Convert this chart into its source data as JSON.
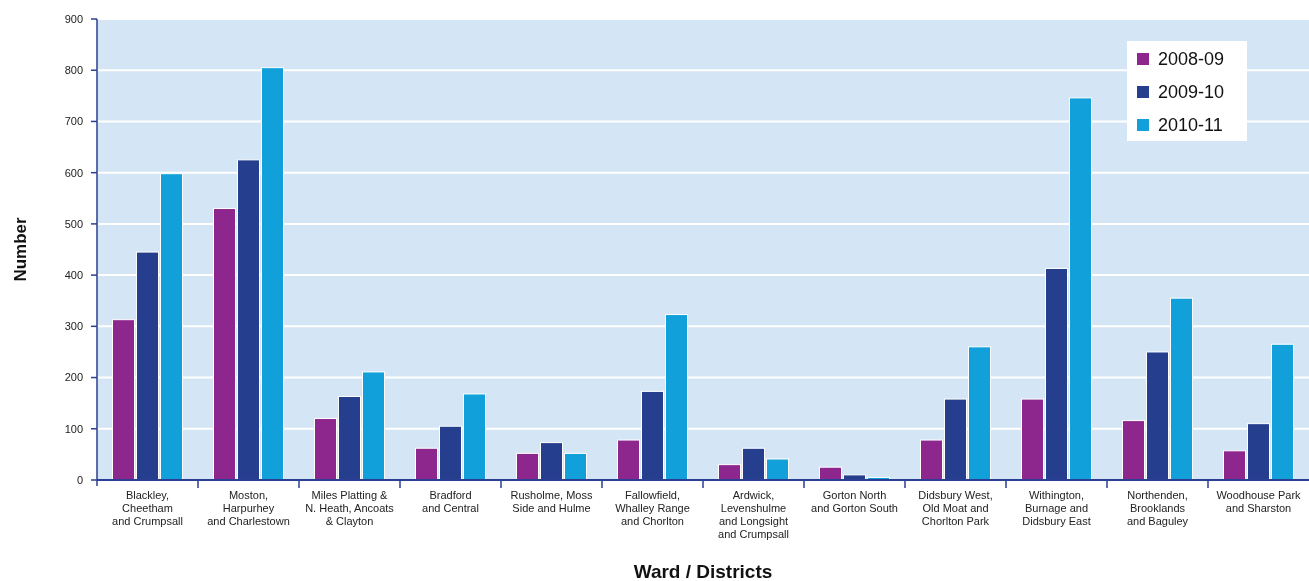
{
  "chart_data": {
    "type": "bar",
    "xlabel": "Ward / Districts",
    "ylabel": "Number",
    "categories": [
      "Blackley,\nCheetham\nand Crumpsall",
      "Moston,\nHarpurhey\nand Charlestown",
      "Miles Platting &\nN. Heath, Ancoats\n& Clayton",
      "Bradford\nand Central",
      "Rusholme, Moss\nSide and Hulme",
      "Fallowfield,\nWhalley Range\nand Chorlton",
      "Ardwick,\nLevenshulme\nand Longsight\nand Crumpsall",
      "Gorton North\nand Gorton South",
      "Didsbury West,\nOld Moat and\nChorlton Park",
      "Withington,\nBurnage and\nDidsbury East",
      "Northenden,\nBrooklands\nand Baguley",
      "Woodhouse Park\nand Sharston"
    ],
    "series": [
      {
        "name": "2008-09",
        "color": "#8e278d",
        "values": [
          313,
          530,
          120,
          62,
          52,
          78,
          30,
          25,
          78,
          158,
          116,
          57
        ]
      },
      {
        "name": "2009-10",
        "color": "#253f8e",
        "values": [
          445,
          625,
          163,
          105,
          73,
          173,
          62,
          10,
          158,
          413,
          250,
          110
        ]
      },
      {
        "name": "2010-11",
        "color": "#12a0da",
        "values": [
          598,
          805,
          211,
          168,
          52,
          323,
          41,
          5,
          260,
          746,
          355,
          265
        ]
      }
    ],
    "ylim": [
      0,
      900
    ],
    "yticks": [
      0,
      100,
      200,
      300,
      400,
      500,
      600,
      700,
      800,
      900
    ],
    "grid": "y",
    "legend": "top right"
  }
}
